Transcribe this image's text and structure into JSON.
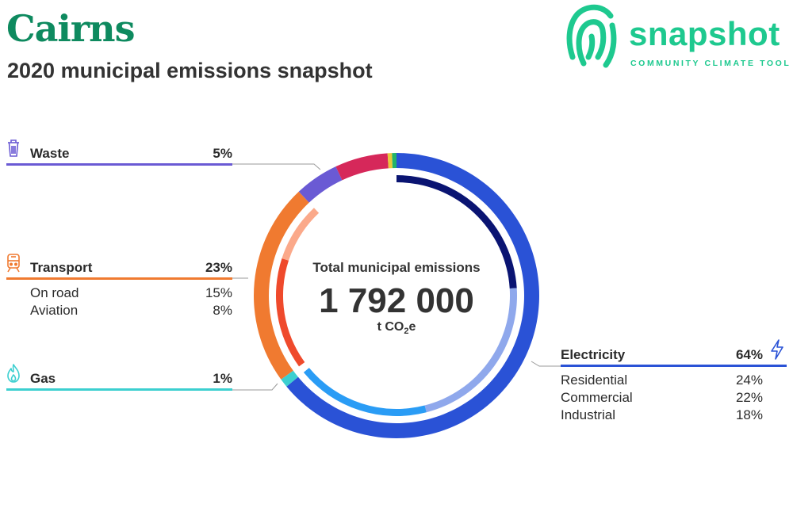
{
  "header": {
    "title": "Cairns",
    "subtitle": "2020 municipal emissions snapshot"
  },
  "logo": {
    "word": "snapshot",
    "tagline": "COMMUNITY CLIMATE TOOL",
    "color": "#1ec98f"
  },
  "center": {
    "label": "Total municipal emissions",
    "value": "1 792 000",
    "unit_prefix": "t CO",
    "unit_sub": "2",
    "unit_suffix": "e"
  },
  "chart_data": {
    "type": "pie",
    "variant": "donut",
    "total": 1792000,
    "unit": "t CO2e",
    "categories": [
      {
        "name": "Electricity",
        "percent": 64,
        "color": "#2a52d6",
        "icon": "lightning-icon",
        "subcategories": [
          {
            "name": "Residential",
            "percent": 24,
            "color": "#0a1472"
          },
          {
            "name": "Commercial",
            "percent": 22,
            "color": "#8fa8ec"
          },
          {
            "name": "Industrial",
            "percent": 18,
            "color": "#2a9cf5"
          }
        ]
      },
      {
        "name": "Gas",
        "percent": 1,
        "color": "#3ccfd0",
        "icon": "flame-icon",
        "subcategories": []
      },
      {
        "name": "Transport",
        "percent": 23,
        "color": "#f07a30",
        "icon": "train-icon",
        "subcategories": [
          {
            "name": "On road",
            "percent": 15,
            "color": "#ef4a2c"
          },
          {
            "name": "Aviation",
            "percent": 8,
            "color": "#fba98a"
          }
        ]
      },
      {
        "name": "Waste",
        "percent": 5,
        "color": "#6a5ad4",
        "icon": "trash-icon",
        "subcategories": []
      },
      {
        "name": "",
        "percent": 6,
        "color": "#d6285a",
        "subcategories": []
      },
      {
        "name": "",
        "percent": 0.5,
        "color": "#e8c93a",
        "subcategories": []
      },
      {
        "name": "",
        "percent": 0.5,
        "color": "#22b46a",
        "subcategories": []
      }
    ]
  },
  "legend": {
    "waste": {
      "label": "Waste",
      "pct": "5%"
    },
    "transport": {
      "label": "Transport",
      "pct": "23%",
      "items": [
        {
          "label": "On road",
          "pct": "15%"
        },
        {
          "label": "Aviation",
          "pct": "8%"
        }
      ]
    },
    "gas": {
      "label": "Gas",
      "pct": "1%"
    },
    "electricity": {
      "label": "Electricity",
      "pct": "64%",
      "items": [
        {
          "label": "Residential",
          "pct": "24%"
        },
        {
          "label": "Commercial",
          "pct": "22%"
        },
        {
          "label": "Industrial",
          "pct": "18%"
        }
      ]
    }
  }
}
